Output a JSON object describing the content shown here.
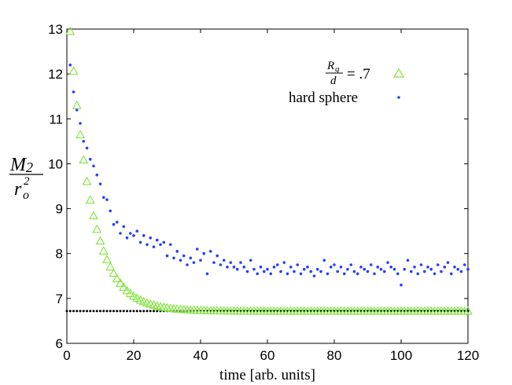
{
  "chart_data": {
    "type": "scatter",
    "xlabel": "time [arb. units]",
    "ylabel": {
      "numerator": "M",
      "numerator_sub": "2",
      "denominator": "r",
      "denominator_sub": "o",
      "denominator_sup": "2"
    },
    "xlim": [
      0,
      120
    ],
    "ylim": [
      6,
      13
    ],
    "xticks": [
      0,
      20,
      40,
      60,
      80,
      100,
      120
    ],
    "yticks": [
      6,
      7,
      8,
      9,
      10,
      11,
      12,
      13
    ],
    "grid": false,
    "legend_position": "top-right",
    "legend": [
      {
        "name": "rg",
        "label_num": "R",
        "label_num_sub": "g",
        "label_den": "d",
        "label_tail": "= .7",
        "marker": "triangle",
        "color": "#7fe43a"
      },
      {
        "name": "hs",
        "label": "hard sphere",
        "marker": "dot",
        "color": "#2540ff"
      }
    ],
    "series": [
      {
        "name": "Rg/d = .7",
        "marker": "triangle",
        "color": "#7fe43a",
        "model": {
          "type": "exp-decay",
          "y_inf": 6.72,
          "y0": 12.95,
          "tau": 6.5,
          "x_start": 1,
          "x_end": 120,
          "step": 1
        }
      },
      {
        "name": "hard sphere",
        "marker": "dot",
        "color": "#2540ff",
        "x": [
          1,
          2,
          3,
          4,
          5,
          6,
          7,
          8,
          9,
          10,
          11,
          12,
          13,
          14,
          15,
          16,
          17,
          18,
          19,
          20,
          21,
          22,
          23,
          24,
          25,
          26,
          27,
          28,
          29,
          30,
          31,
          32,
          33,
          34,
          35,
          36,
          37,
          38,
          39,
          40,
          41,
          42,
          43,
          44,
          45,
          46,
          47,
          48,
          49,
          50,
          51,
          52,
          53,
          54,
          55,
          56,
          57,
          58,
          59,
          60,
          61,
          62,
          63,
          64,
          65,
          66,
          67,
          68,
          69,
          70,
          71,
          72,
          73,
          74,
          75,
          76,
          77,
          78,
          79,
          80,
          81,
          82,
          83,
          84,
          85,
          86,
          87,
          88,
          89,
          90,
          91,
          92,
          93,
          94,
          95,
          96,
          97,
          98,
          99,
          100,
          101,
          102,
          103,
          104,
          105,
          106,
          107,
          108,
          109,
          110,
          111,
          112,
          113,
          114,
          115,
          116,
          117,
          118,
          119,
          120
        ],
        "y": [
          12.2,
          11.6,
          11.2,
          10.9,
          10.5,
          10.35,
          10.1,
          9.95,
          9.75,
          9.55,
          9.25,
          9.2,
          8.95,
          8.65,
          8.7,
          8.45,
          8.6,
          8.35,
          8.45,
          8.4,
          8.5,
          8.25,
          8.4,
          8.2,
          8.35,
          8.15,
          8.3,
          8.2,
          8.25,
          7.95,
          8.2,
          7.9,
          8.05,
          7.85,
          7.95,
          7.75,
          7.9,
          7.8,
          8.1,
          7.85,
          8.0,
          7.55,
          8.05,
          7.8,
          7.95,
          7.75,
          7.85,
          7.7,
          7.8,
          7.7,
          7.65,
          7.8,
          7.7,
          7.6,
          7.85,
          7.65,
          7.55,
          7.7,
          7.6,
          7.65,
          7.55,
          7.7,
          7.75,
          7.6,
          7.8,
          7.55,
          7.7,
          7.6,
          7.75,
          7.55,
          7.65,
          7.7,
          7.6,
          7.5,
          7.65,
          7.6,
          7.85,
          7.55,
          7.7,
          7.75,
          7.6,
          7.7,
          7.55,
          7.65,
          7.75,
          7.6,
          7.55,
          7.7,
          7.65,
          7.6,
          7.75,
          7.55,
          7.7,
          7.65,
          7.6,
          7.8,
          7.7,
          7.65,
          7.55,
          7.3,
          7.65,
          7.85,
          7.6,
          7.7,
          7.55,
          7.75,
          7.6,
          7.7,
          7.65,
          7.55,
          7.75,
          7.6,
          7.7,
          7.8,
          7.55,
          7.7,
          7.65,
          7.6,
          7.75,
          7.65
        ]
      },
      {
        "name": "reference",
        "marker": "small-dot",
        "color": "#000000",
        "model": {
          "type": "constant",
          "y": 6.72,
          "x_start": 0,
          "x_end": 120,
          "step": 1
        }
      }
    ]
  }
}
